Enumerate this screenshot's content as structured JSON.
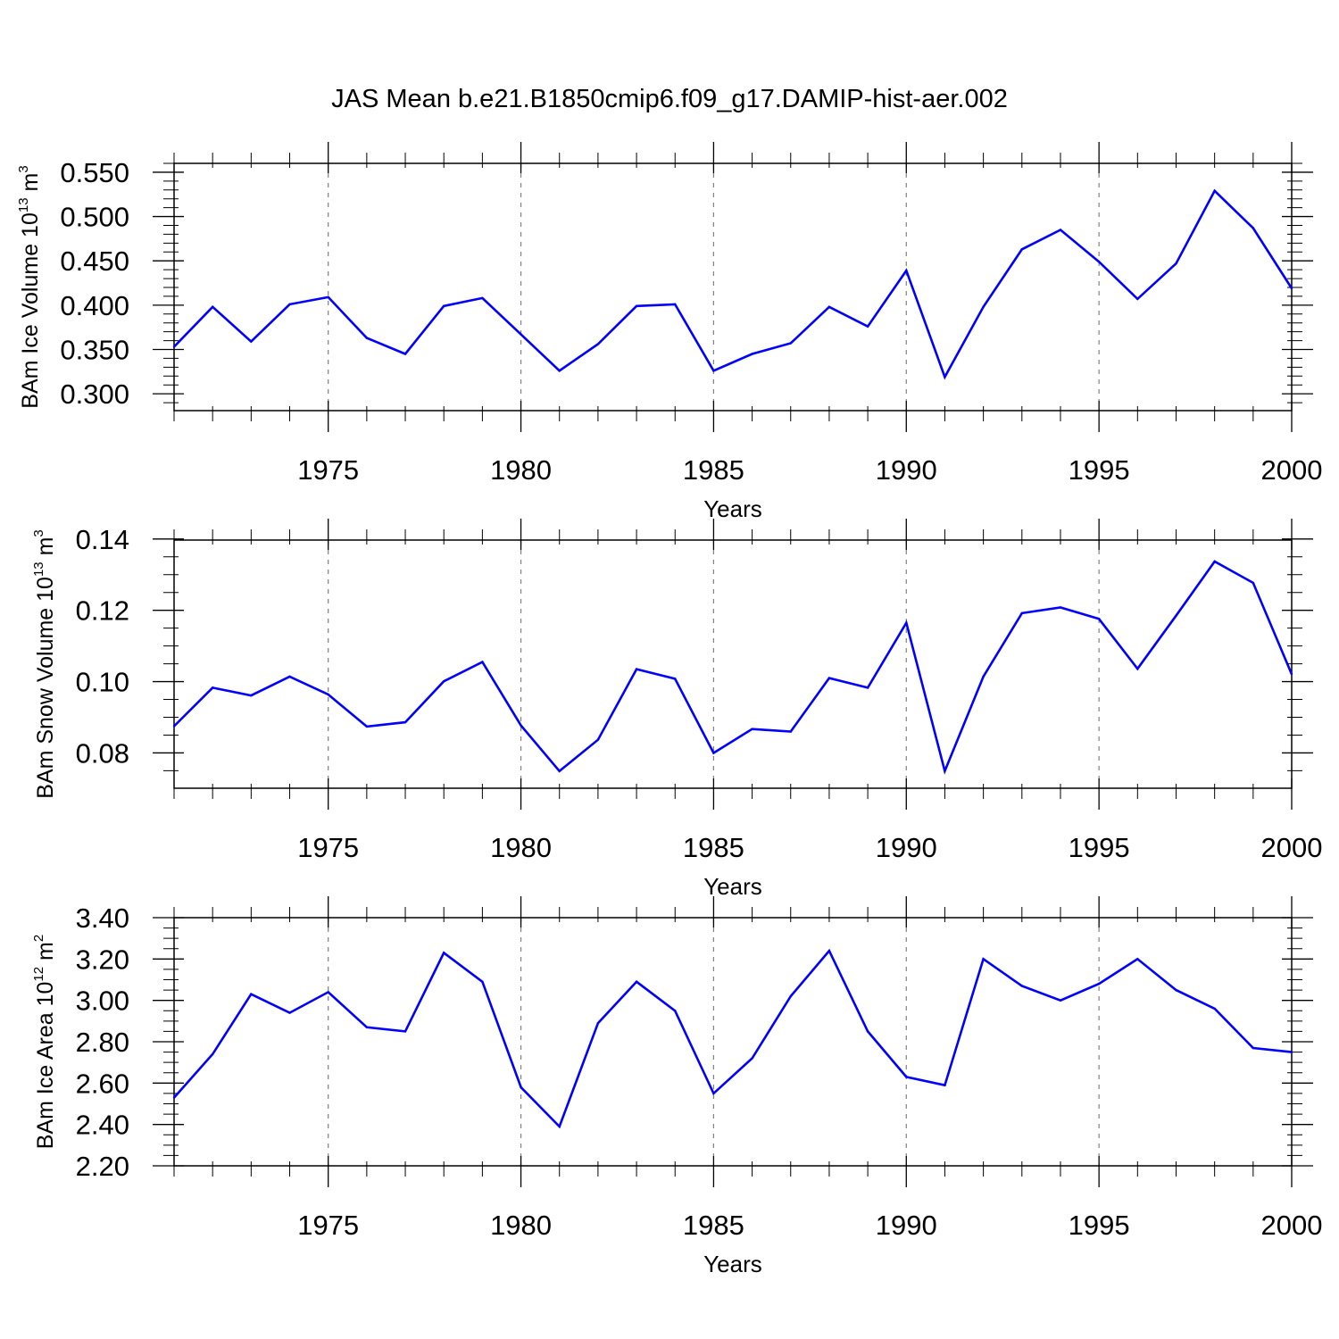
{
  "title": "JAS Mean b.e21.B1850cmip6.f09_g17.DAMIP-hist-aer.002",
  "colors": {
    "series": "#0000ff",
    "axis": "#000000",
    "grid": "#808080"
  },
  "chart_data": [
    {
      "type": "line",
      "ylabel": {
        "prefix": "BAm Ice Volume 10",
        "exponent": "13",
        "unit": "m",
        "unit_exponent": "3"
      },
      "xlabel": "Years",
      "xlim": [
        1971,
        2000
      ],
      "ylim": [
        0.281,
        0.56
      ],
      "xticks": [
        1975,
        1980,
        1985,
        1990,
        1995,
        2000
      ],
      "xtick_labels": [
        "1975",
        "1980",
        "1985",
        "1990",
        "1995",
        "2000"
      ],
      "yticks": [
        0.3,
        0.35,
        0.4,
        0.45,
        0.5,
        0.55
      ],
      "ytick_labels": [
        "0.300",
        "0.350",
        "0.400",
        "0.450",
        "0.500",
        "0.550"
      ],
      "yminor_step": 0.01,
      "grid": "x-dashed",
      "x": [
        1971,
        1972,
        1973,
        1974,
        1975,
        1976,
        1977,
        1978,
        1979,
        1980,
        1981,
        1982,
        1983,
        1984,
        1985,
        1986,
        1987,
        1988,
        1989,
        1990,
        1991,
        1992,
        1993,
        1994,
        1995,
        1996,
        1997,
        1998,
        1999,
        2000
      ],
      "values": [
        0.353,
        0.398,
        0.359,
        0.401,
        0.409,
        0.363,
        0.345,
        0.399,
        0.408,
        0.367,
        0.326,
        0.356,
        0.399,
        0.401,
        0.326,
        0.345,
        0.357,
        0.398,
        0.376,
        0.439,
        0.319,
        0.398,
        0.463,
        0.485,
        0.449,
        0.407,
        0.447,
        0.529,
        0.487,
        0.419
      ]
    },
    {
      "type": "line",
      "ylabel": {
        "prefix": "BAm Snow Volume 10",
        "exponent": "13",
        "unit": "m",
        "unit_exponent": "3"
      },
      "xlabel": "Years",
      "xlim": [
        1971,
        2000
      ],
      "ylim": [
        0.0701,
        0.1397
      ],
      "xticks": [
        1975,
        1980,
        1985,
        1990,
        1995,
        2000
      ],
      "xtick_labels": [
        "1975",
        "1980",
        "1985",
        "1990",
        "1995",
        "2000"
      ],
      "yticks": [
        0.08,
        0.1,
        0.12,
        0.14
      ],
      "ytick_labels": [
        "0.08",
        "0.10",
        "0.12",
        "0.14"
      ],
      "yminor_step": 0.005,
      "grid": "x-dashed",
      "x": [
        1971,
        1972,
        1973,
        1974,
        1975,
        1976,
        1977,
        1978,
        1979,
        1980,
        1981,
        1982,
        1983,
        1984,
        1985,
        1986,
        1987,
        1988,
        1989,
        1990,
        1991,
        1992,
        1993,
        1994,
        1995,
        1996,
        1997,
        1998,
        1999,
        2000
      ],
      "values": [
        0.0875,
        0.0983,
        0.0961,
        0.1014,
        0.0964,
        0.0874,
        0.0886,
        0.1001,
        0.1055,
        0.0877,
        0.0749,
        0.0837,
        0.1035,
        0.1008,
        0.08,
        0.0867,
        0.086,
        0.101,
        0.0983,
        0.1165,
        0.0749,
        0.1014,
        0.1192,
        0.1208,
        0.1176,
        0.1036,
        0.1185,
        0.1337,
        0.1277,
        0.1021
      ]
    },
    {
      "type": "line",
      "ylabel": {
        "prefix": "BAm Ice Area 10",
        "exponent": "12",
        "unit": "m",
        "unit_exponent": "2"
      },
      "xlabel": "Years",
      "xlim": [
        1971,
        2000
      ],
      "ylim": [
        2.2,
        3.4
      ],
      "xticks": [
        1975,
        1980,
        1985,
        1990,
        1995,
        2000
      ],
      "xtick_labels": [
        "1975",
        "1980",
        "1985",
        "1990",
        "1995",
        "2000"
      ],
      "yticks": [
        2.2,
        2.4,
        2.6,
        2.8,
        3.0,
        3.2,
        3.4
      ],
      "ytick_labels": [
        "2.20",
        "2.40",
        "2.60",
        "2.80",
        "3.00",
        "3.20",
        "3.40"
      ],
      "yminor_step": 0.05,
      "grid": "x-dashed",
      "x": [
        1971,
        1972,
        1973,
        1974,
        1975,
        1976,
        1977,
        1978,
        1979,
        1980,
        1981,
        1982,
        1983,
        1984,
        1985,
        1986,
        1987,
        1988,
        1989,
        1990,
        1991,
        1992,
        1993,
        1994,
        1995,
        1996,
        1997,
        1998,
        1999,
        2000
      ],
      "values": [
        2.53,
        2.74,
        3.03,
        2.94,
        3.04,
        2.87,
        2.85,
        3.23,
        3.09,
        2.58,
        2.39,
        2.89,
        3.09,
        2.95,
        2.55,
        2.72,
        3.02,
        3.24,
        2.85,
        2.63,
        2.59,
        3.2,
        3.07,
        3.0,
        3.08,
        3.2,
        3.05,
        2.96,
        2.77,
        2.75
      ]
    }
  ]
}
